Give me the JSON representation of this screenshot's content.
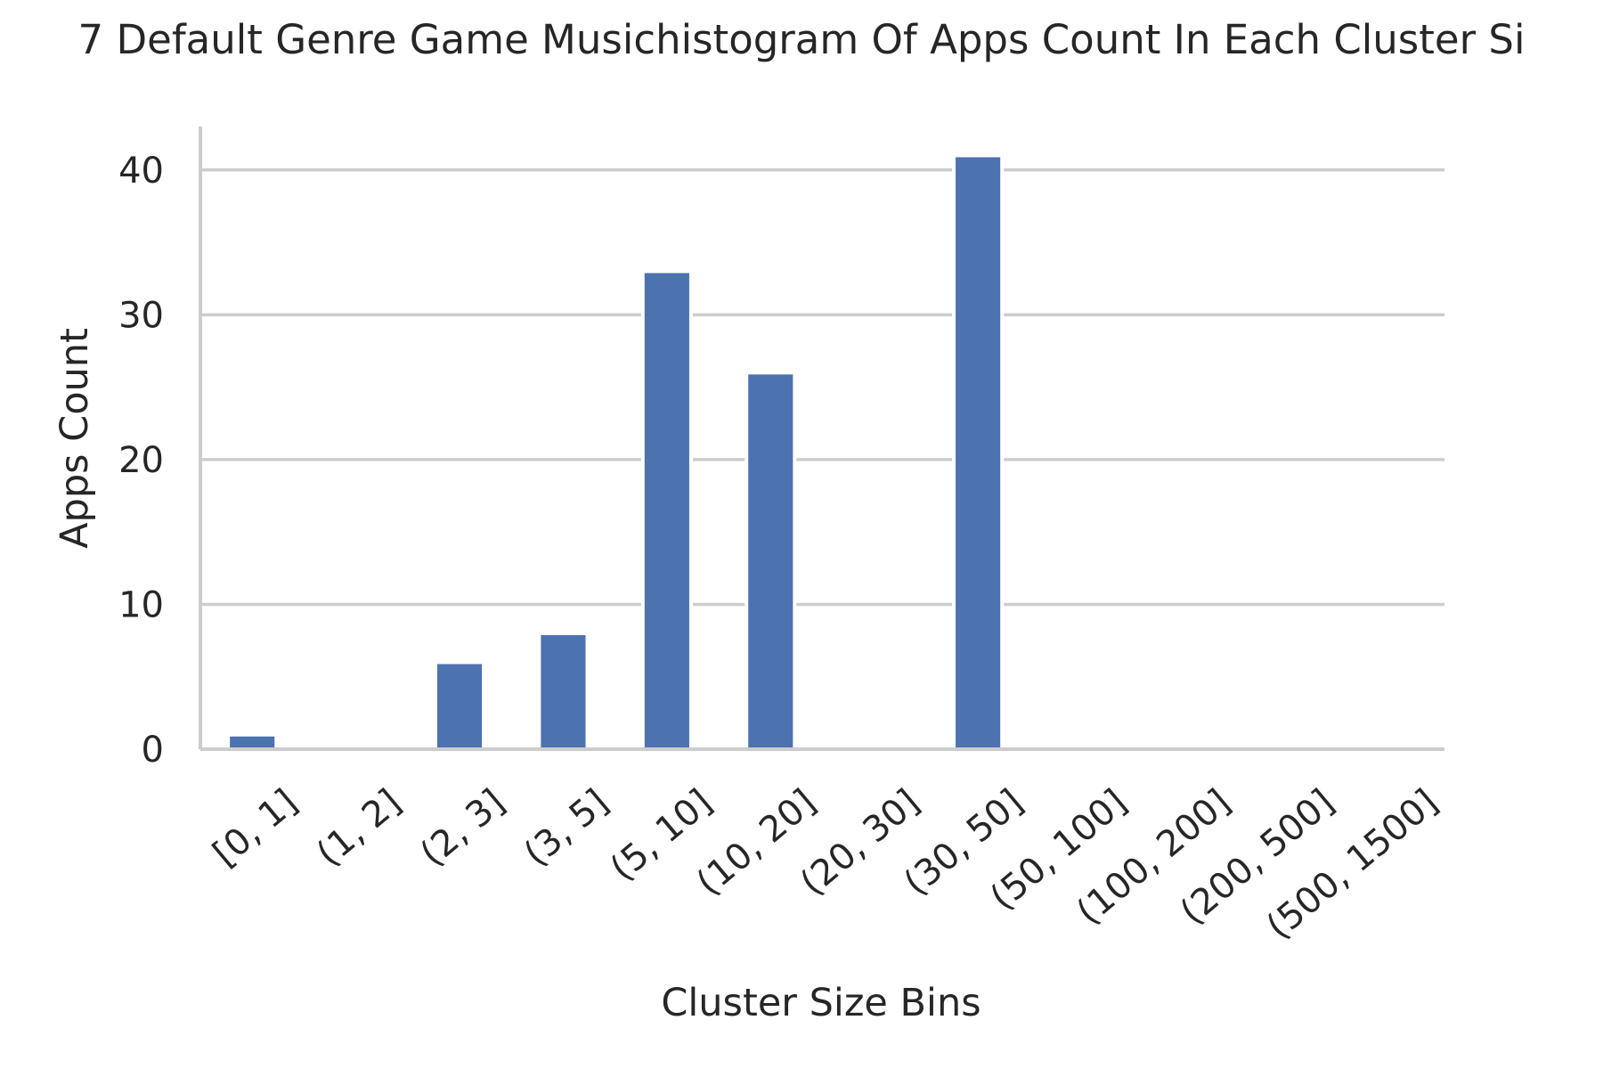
{
  "chart_data": {
    "type": "bar",
    "title": "7 Default Genre Game Musichistogram Of Apps Count In Each Cluster Si",
    "xlabel": "Cluster Size Bins",
    "ylabel": "Apps Count",
    "categories": [
      "[0, 1]",
      "(1, 2]",
      "(2, 3]",
      "(3, 5]",
      "(5, 10]",
      "(10, 20]",
      "(20, 30]",
      "(30, 50]",
      "(50, 100]",
      "(100, 200]",
      "(200, 500]",
      "(500, 1500]"
    ],
    "values": [
      1,
      0,
      6,
      8,
      33,
      26,
      0,
      41,
      0,
      0,
      0,
      0
    ],
    "ylim": [
      0,
      43
    ],
    "yticks": [
      0,
      10,
      20,
      30,
      40
    ],
    "grid": "horizontal",
    "legend": "none",
    "colors": {
      "bar": "#4c72b0",
      "grid": "#cccccc",
      "axis": "#cccccc",
      "text": "#262626"
    }
  }
}
